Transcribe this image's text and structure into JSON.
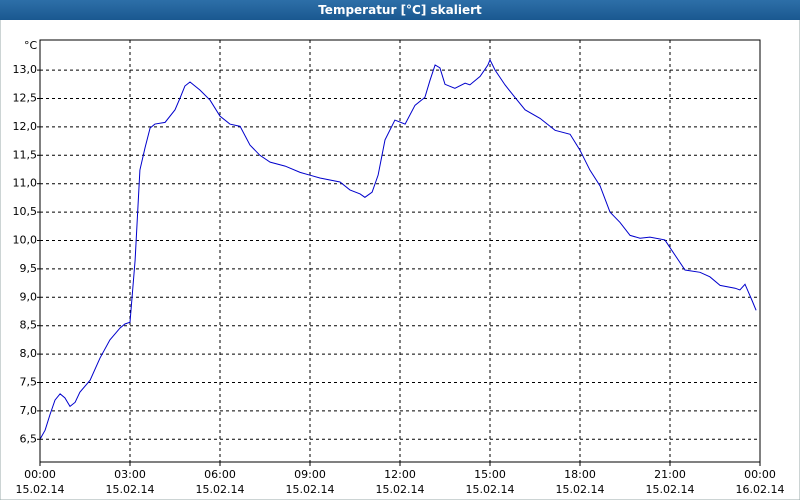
{
  "chart_data": {
    "type": "line",
    "title": "Temperatur [°C] skaliert",
    "ylabel": "°C",
    "color": "#0000cc",
    "grid": true,
    "xlim": [
      0,
      24
    ],
    "ylim": [
      6.1,
      13.53
    ],
    "xticks": [
      {
        "value": 0,
        "label": [
          "00:00",
          "15.02.14"
        ]
      },
      {
        "value": 3,
        "label": [
          "03:00",
          "15.02.14"
        ]
      },
      {
        "value": 6,
        "label": [
          "06:00",
          "15.02.14"
        ]
      },
      {
        "value": 9,
        "label": [
          "09:00",
          "15.02.14"
        ]
      },
      {
        "value": 12,
        "label": [
          "12:00",
          "15.02.14"
        ]
      },
      {
        "value": 15,
        "label": [
          "15:00",
          "15.02.14"
        ]
      },
      {
        "value": 18,
        "label": [
          "18:00",
          "15.02.14"
        ]
      },
      {
        "value": 21,
        "label": [
          "21:00",
          "15.02.14"
        ]
      },
      {
        "value": 24,
        "label": [
          "00:00",
          "16.02.14"
        ]
      }
    ],
    "yticks": [
      {
        "value": 6.5,
        "label": "6,5"
      },
      {
        "value": 7,
        "label": "7,0"
      },
      {
        "value": 7.5,
        "label": "7,5"
      },
      {
        "value": 8,
        "label": "8,0"
      },
      {
        "value": 8.5,
        "label": "8,5"
      },
      {
        "value": 9,
        "label": "9,0"
      },
      {
        "value": 9.5,
        "label": "9,5"
      },
      {
        "value": 10,
        "label": "10,0"
      },
      {
        "value": 10.5,
        "label": "10,5"
      },
      {
        "value": 11,
        "label": "11,0"
      },
      {
        "value": 11.5,
        "label": "11,5"
      },
      {
        "value": 12,
        "label": "12,0"
      },
      {
        "value": 12.5,
        "label": "12,5"
      },
      {
        "value": 13,
        "label": "13,0"
      }
    ],
    "x": [
      0,
      0.17,
      0.33,
      0.5,
      0.67,
      0.83,
      1,
      1.17,
      1.33,
      1.67,
      2,
      2.33,
      2.67,
      2.83,
      3,
      3.17,
      3.33,
      3.5,
      3.67,
      3.83,
      4.17,
      4.5,
      4.67,
      4.83,
      5,
      5.33,
      5.67,
      6,
      6.33,
      6.67,
      7,
      7.33,
      7.67,
      8.17,
      8.67,
      9,
      9.33,
      10,
      10.33,
      10.67,
      10.83,
      11.07,
      11.27,
      11.5,
      11.83,
      12.17,
      12.5,
      12.83,
      13,
      13.17,
      13.33,
      13.5,
      13.83,
      14.17,
      14.33,
      14.67,
      14.93,
      15,
      15.17,
      15.5,
      15.83,
      16.17,
      16.67,
      17.17,
      17.67,
      18,
      18.33,
      18.67,
      19,
      19.33,
      19.67,
      20,
      20.33,
      20.83,
      21.17,
      21.5,
      22,
      22.33,
      22.67,
      23.17,
      23.33,
      23.5,
      23.73,
      23.87
    ],
    "values": [
      6.5,
      6.66,
      6.93,
      7.19,
      7.3,
      7.23,
      7.08,
      7.15,
      7.33,
      7.54,
      7.93,
      8.25,
      8.46,
      8.53,
      8.56,
      9.65,
      11.24,
      11.63,
      11.98,
      12.05,
      12.08,
      12.3,
      12.51,
      12.72,
      12.79,
      12.65,
      12.47,
      12.19,
      12.05,
      12.01,
      11.68,
      11.5,
      11.38,
      11.31,
      11.2,
      11.15,
      11.1,
      11.03,
      10.89,
      10.82,
      10.76,
      10.85,
      11.15,
      11.77,
      12.12,
      12.05,
      12.38,
      12.52,
      12.82,
      13.09,
      13.04,
      12.75,
      12.68,
      12.77,
      12.74,
      12.89,
      13.09,
      13.18,
      13.0,
      12.74,
      12.52,
      12.3,
      12.15,
      11.94,
      11.87,
      11.59,
      11.24,
      10.96,
      10.5,
      10.32,
      10.09,
      10.04,
      10.06,
      10.01,
      9.74,
      9.48,
      9.44,
      9.36,
      9.21,
      9.16,
      9.13,
      9.23,
      8.95,
      8.77
    ]
  }
}
